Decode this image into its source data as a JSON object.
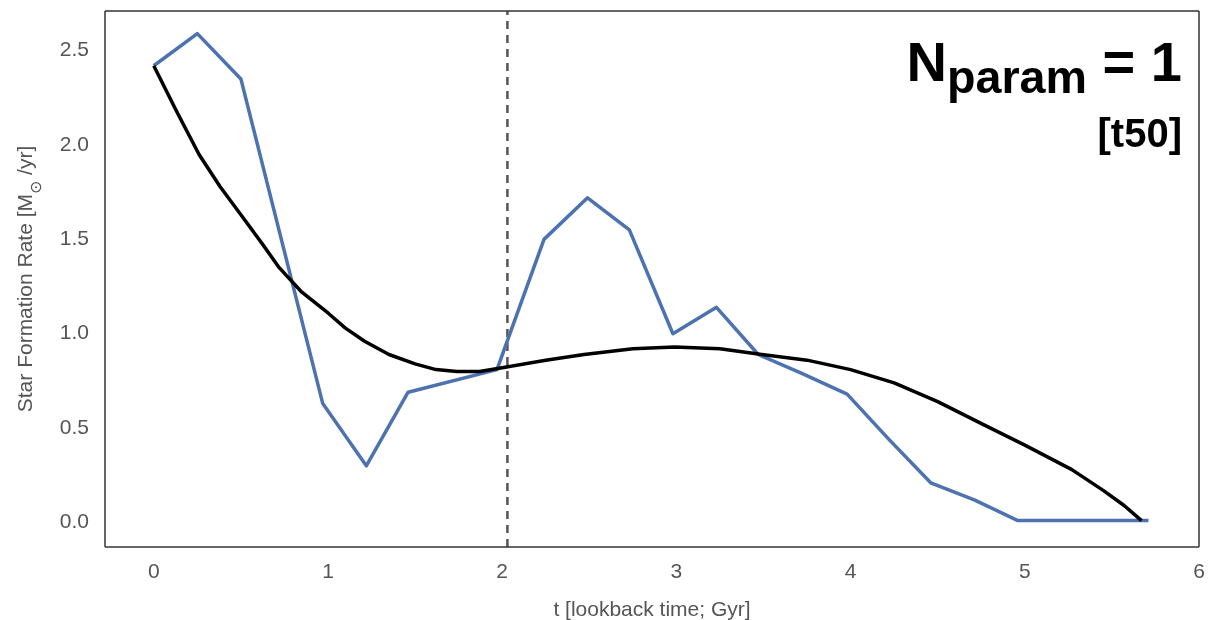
{
  "chart_data": {
    "type": "line",
    "xlabel": "t [lookback time; Gyr]",
    "ylabel": "Star Formation Rate [M$_{⊙}$ /yr]",
    "annotations": [
      "N$_{param}$ = 1",
      "[t50]"
    ],
    "xlim": [
      -0.28,
      6.0
    ],
    "xticks": [
      0,
      1,
      2,
      3,
      4,
      5,
      6
    ],
    "ylim": [
      -0.14,
      2.7
    ],
    "yticks": [
      {
        "value": 0,
        "label": "0.0"
      },
      0.5,
      {
        "value": 1,
        "label": "1.0"
      },
      1.5,
      {
        "value": 2,
        "label": "2.0"
      },
      2.5
    ],
    "grid": false,
    "marker": "none",
    "line_style": "solid",
    "series": [
      {
        "color": "#4c72b0",
        "x": [
          0,
          0.25,
          0.5,
          0.97,
          1.22,
          1.46,
          1.97,
          2.24,
          2.49,
          2.73,
          2.98,
          3.23,
          3.47,
          3.72,
          3.98,
          4.22,
          4.46,
          4.71,
          4.96,
          5.71
        ],
        "values": [
          2.41,
          2.58,
          2.34,
          0.62,
          0.29,
          0.68,
          0.8,
          1.49,
          1.71,
          1.54,
          0.99,
          1.13,
          0.88,
          0.78,
          0.67,
          0.43,
          0.2,
          0.11,
          0,
          0
        ]
      },
      {
        "color": "#000000",
        "x": [
          0,
          0.13,
          0.26,
          0.38,
          0.5,
          0.62,
          0.72,
          0.85,
          1.0,
          1.1,
          1.21,
          1.35,
          1.5,
          1.62,
          1.74,
          1.87,
          2.0,
          2.25,
          2.47,
          2.75,
          2.99,
          3.25,
          3.49,
          3.75,
          4.0,
          4.25,
          4.5,
          4.76,
          5.0,
          5.27,
          5.45,
          5.57,
          5.67
        ],
        "values": [
          2.41,
          2.17,
          1.94,
          1.77,
          1.62,
          1.47,
          1.34,
          1.21,
          1.1,
          1.02,
          0.95,
          0.88,
          0.83,
          0.8,
          0.79,
          0.79,
          0.81,
          0.85,
          0.88,
          0.91,
          0.92,
          0.91,
          0.88,
          0.85,
          0.8,
          0.73,
          0.63,
          0.51,
          0.4,
          0.27,
          0.16,
          0.08,
          0
        ]
      }
    ],
    "ref_lines": [
      {
        "axis": "x",
        "value": 2.03,
        "color": "#555555",
        "line_style": "dashed"
      }
    ]
  }
}
